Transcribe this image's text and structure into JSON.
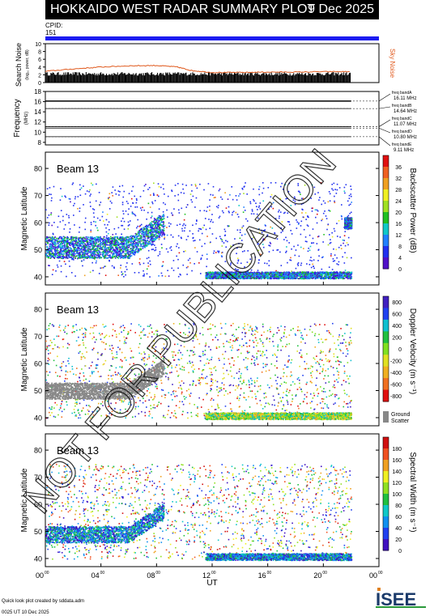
{
  "header": {
    "title": "HOKKAIDO WEST RADAR SUMMARY PLOT",
    "date": "9 Dec 2025"
  },
  "cpid": {
    "label": "CPID:",
    "value": "151"
  },
  "noise_panel": {
    "ylabel": "Search Noise",
    "ylabel2": "(log₁₀ power, dB)",
    "right_label": "Sky Noise",
    "yticks": [
      "0",
      "2",
      "4",
      "6",
      "8",
      "10"
    ]
  },
  "freq_panel": {
    "ylabel": "Frequency",
    "unit": "(MHz)",
    "yticks": [
      "8",
      "10",
      "12",
      "14",
      "16",
      "18"
    ],
    "bands": [
      {
        "label": "freq bandA",
        "value": "16.11 MHz"
      },
      {
        "label": "freq bandB",
        "value": "14.64 MHz"
      },
      {
        "label": "freq bandC",
        "value": "11.07 MHz"
      },
      {
        "label": "freq bandD",
        "value": "10.80 MHz"
      },
      {
        "label": "freq bandE",
        "value": "9.11 MHz"
      }
    ]
  },
  "panels": [
    {
      "beam": "Beam 13",
      "ylabel": "Magnetic Latitude",
      "cbar_label": "Backscatter Power (dB)",
      "cbar_ticks": [
        "0",
        "4",
        "8",
        "12",
        "16",
        "20",
        "24",
        "28",
        "32",
        "36"
      ]
    },
    {
      "beam": "Beam 13",
      "ylabel": "Magnetic Latitude",
      "cbar_label": "Doppler Velocity (m s⁻¹)",
      "cbar_ticks": [
        "800",
        "600",
        "400",
        "200",
        "0",
        "-200",
        "-400",
        "-600",
        "-800"
      ],
      "ground_label_1": "Ground",
      "ground_label_2": "Scatter"
    },
    {
      "beam": "Beam 13",
      "ylabel": "Magnetic Latitude",
      "cbar_label": "Spectral Width (m s⁻¹)",
      "cbar_ticks": [
        "0",
        "20",
        "40",
        "60",
        "80",
        "100",
        "120",
        "140",
        "160",
        "180"
      ]
    }
  ],
  "xaxis": {
    "label": "UT",
    "ticks": [
      "00",
      "04",
      "08",
      "12",
      "16",
      "20",
      "00"
    ],
    "tick_sup": "00"
  },
  "watermark": "NOT FOR PUBLICATION",
  "footer": {
    "line1": "Quick look plot created by sddata.adm",
    "line2": "0025 UT 10 Dec 2025"
  },
  "logo": {
    "text": "ISEE"
  },
  "chart_data": [
    {
      "type": "line",
      "title": "",
      "ylabel": "Search Noise",
      "x": [
        0,
        2,
        4,
        6,
        8,
        9.5,
        10.5,
        12,
        14,
        16,
        18,
        20,
        22
      ],
      "series": [
        {
          "name": "Sky Noise",
          "color": "#e05a1e",
          "values": [
            2.9,
            3.5,
            4.0,
            4.3,
            4.4,
            4.0,
            3.1,
            2.6,
            2.6,
            2.7,
            2.7,
            2.8,
            2.8
          ]
        }
      ],
      "xlim": [
        0,
        24
      ],
      "ylim": [
        0,
        10
      ]
    },
    {
      "type": "line",
      "ylabel": "Frequency",
      "x": [
        0,
        22
      ],
      "series": [
        {
          "name": "freq bandA",
          "values": [
            16.11,
            16.11
          ]
        },
        {
          "name": "freq bandB",
          "values": [
            14.64,
            14.64
          ]
        },
        {
          "name": "freq bandC",
          "values": [
            11.07,
            11.07
          ]
        },
        {
          "name": "freq bandD",
          "values": [
            10.8,
            10.8
          ]
        },
        {
          "name": "freq bandE",
          "values": [
            9.11,
            9.11
          ]
        }
      ],
      "xlim": [
        0,
        24
      ],
      "ylim": [
        7.5,
        18
      ]
    },
    {
      "type": "heatmap",
      "ylabel": "Magnetic Latitude",
      "xlim": [
        0,
        24
      ],
      "ylim": [
        37,
        86
      ],
      "x_ticks": [
        0,
        4,
        8,
        12,
        16,
        20,
        24
      ],
      "y_ticks": [
        40,
        50,
        60,
        70,
        80
      ],
      "regions": [
        {
          "param": "power",
          "t": [
            0,
            8.5
          ],
          "lat": [
            47,
            55
          ],
          "value_range": [
            8,
            24
          ]
        },
        {
          "param": "power",
          "t": [
            11.5,
            22
          ],
          "lat": [
            39.5,
            42
          ],
          "value_range": [
            0,
            8
          ]
        },
        {
          "param": "power",
          "t": [
            21.5,
            22
          ],
          "lat": [
            58,
            62
          ],
          "value_range": [
            4,
            12
          ]
        },
        {
          "param": "velocity",
          "t": [
            0,
            8.5
          ],
          "lat": [
            47,
            53
          ],
          "value": "ground scatter"
        },
        {
          "param": "velocity",
          "t": [
            11.5,
            22
          ],
          "lat": [
            39.5,
            42
          ],
          "value_range": [
            -200,
            200
          ]
        },
        {
          "param": "width",
          "t": [
            0,
            8.5
          ],
          "lat": [
            46,
            52
          ],
          "value_range": [
            0,
            40
          ]
        },
        {
          "param": "width",
          "t": [
            11.5,
            22
          ],
          "lat": [
            39.5,
            42
          ],
          "value_range": [
            0,
            60
          ]
        }
      ]
    }
  ],
  "colors": {
    "blue_bar": "#1c1cf0",
    "sky_noise": "#e05a1e",
    "ground_scatter": "#888888",
    "power_scale": [
      "#5010c8",
      "#2030f0",
      "#2080ff",
      "#10c8c8",
      "#20c020",
      "#a0e020",
      "#f0f020",
      "#f0a020",
      "#f06020",
      "#e01010"
    ],
    "velocity_scale": [
      "#4020c0",
      "#2040f0",
      "#10c0d0",
      "#20c040",
      "#80e020",
      "#e0e020",
      "#f0b020",
      "#f07020",
      "#e01010"
    ],
    "width_scale": [
      "#4010c0",
      "#2040f0",
      "#1090f0",
      "#10c8c8",
      "#20c040",
      "#90e020",
      "#f0f020",
      "#f0a020",
      "#f05020",
      "#d01010"
    ]
  }
}
